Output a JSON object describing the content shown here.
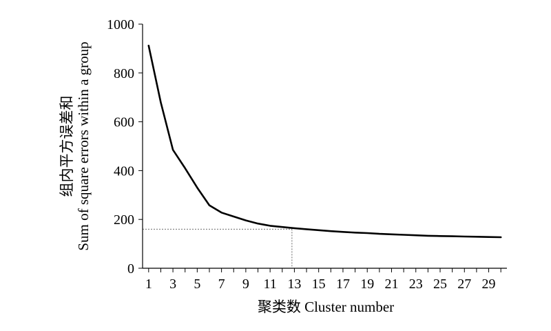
{
  "chart_data": {
    "type": "line",
    "title": "",
    "xlabel": "聚类数 Cluster number",
    "ylabel_line1": "组内平方误差和",
    "ylabel_line2": "Sum of square errors within a group",
    "xlim": [
      0.5,
      30.5
    ],
    "ylim": [
      0,
      1000
    ],
    "xticks": [
      1,
      3,
      5,
      7,
      9,
      11,
      13,
      15,
      17,
      19,
      21,
      23,
      25,
      27,
      29
    ],
    "xticks_minor": [
      1,
      2,
      3,
      4,
      5,
      6,
      7,
      8,
      9,
      10,
      11,
      12,
      13,
      14,
      15,
      16,
      17,
      18,
      19,
      20,
      21,
      22,
      23,
      24,
      25,
      26,
      27,
      28,
      29,
      30
    ],
    "yticks": [
      0,
      200,
      400,
      600,
      800,
      1000
    ],
    "grid": false,
    "series": [
      {
        "name": "",
        "x": [
          1,
          2,
          3,
          4,
          5,
          6,
          7,
          8,
          9,
          10,
          11,
          12,
          13,
          14,
          15,
          16,
          17,
          18,
          19,
          20,
          21,
          22,
          23,
          24,
          25,
          26,
          27,
          28,
          29,
          30
        ],
        "y": [
          912,
          680,
          485,
          410,
          330,
          258,
          228,
          212,
          196,
          183,
          174,
          169,
          164,
          160,
          156,
          152,
          149,
          146,
          144,
          141,
          139,
          137,
          135,
          133,
          132,
          131,
          130,
          129,
          128,
          127
        ]
      }
    ],
    "reference": {
      "x": 12.8,
      "y": 160
    }
  }
}
